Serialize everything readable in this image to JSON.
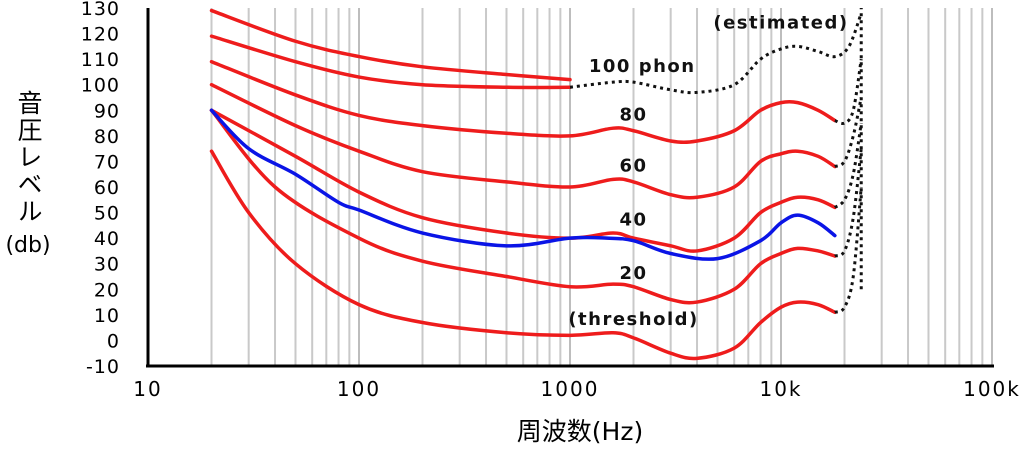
{
  "chart_data": {
    "type": "line",
    "title": "",
    "xlabel": "周波数(Hz)",
    "ylabel": "音圧レベル",
    "ylabel_unit": "(db)",
    "x_scale": "log",
    "xlim": [
      10,
      100000
    ],
    "ylim": [
      -10,
      130
    ],
    "x_ticks": [
      10,
      100,
      1000,
      10000,
      100000
    ],
    "x_tick_labels": [
      "10",
      "100",
      "1000",
      "10k",
      "100k"
    ],
    "y_ticks": [
      -10,
      0,
      10,
      20,
      30,
      40,
      50,
      60,
      70,
      80,
      90,
      100,
      110,
      120,
      130
    ],
    "y_tick_labels": [
      "-10",
      "0",
      "10",
      "20",
      "30",
      "40",
      "50",
      "60",
      "70",
      "80",
      "90",
      "100",
      "110",
      "120",
      "130"
    ],
    "grid": "vertical log minor lines",
    "series": [
      {
        "name": "(threshold)",
        "color": "#ee1c1c",
        "style": "solid",
        "points": [
          [
            20,
            74
          ],
          [
            30,
            50
          ],
          [
            50,
            30
          ],
          [
            100,
            14
          ],
          [
            200,
            7
          ],
          [
            500,
            3
          ],
          [
            1000,
            2
          ],
          [
            1600,
            3
          ],
          [
            2000,
            1
          ],
          [
            3000,
            -5
          ],
          [
            4000,
            -7
          ],
          [
            6000,
            -3
          ],
          [
            8000,
            7
          ],
          [
            10000,
            13
          ],
          [
            12000,
            15
          ],
          [
            15000,
            14
          ],
          [
            18000,
            11
          ]
        ]
      },
      {
        "name": "20",
        "color": "#ee1c1c",
        "style": "solid",
        "points": [
          [
            20,
            90
          ],
          [
            40,
            60
          ],
          [
            100,
            40
          ],
          [
            200,
            31
          ],
          [
            500,
            25
          ],
          [
            1000,
            21
          ],
          [
            1600,
            22
          ],
          [
            2000,
            21
          ],
          [
            3000,
            16
          ],
          [
            4000,
            15
          ],
          [
            6000,
            20
          ],
          [
            8000,
            30
          ],
          [
            10000,
            34
          ],
          [
            12000,
            36
          ],
          [
            15000,
            35
          ],
          [
            18000,
            33
          ]
        ]
      },
      {
        "name": "40",
        "color": "#ee1c1c",
        "style": "solid",
        "points": [
          [
            20,
            90
          ],
          [
            50,
            72
          ],
          [
            100,
            58
          ],
          [
            200,
            48
          ],
          [
            500,
            42
          ],
          [
            1000,
            40
          ],
          [
            1600,
            42
          ],
          [
            2000,
            40
          ],
          [
            3000,
            37
          ],
          [
            4000,
            35
          ],
          [
            6000,
            40
          ],
          [
            8000,
            50
          ],
          [
            10000,
            54
          ],
          [
            12000,
            56
          ],
          [
            15000,
            55
          ],
          [
            18000,
            52
          ]
        ]
      },
      {
        "name": "60",
        "color": "#ee1c1c",
        "style": "solid",
        "points": [
          [
            20,
            100
          ],
          [
            50,
            84
          ],
          [
            100,
            74
          ],
          [
            200,
            66
          ],
          [
            500,
            62
          ],
          [
            1000,
            60
          ],
          [
            1600,
            63
          ],
          [
            2000,
            62
          ],
          [
            3000,
            57
          ],
          [
            4000,
            56
          ],
          [
            6000,
            60
          ],
          [
            8000,
            70
          ],
          [
            10000,
            73
          ],
          [
            12000,
            74
          ],
          [
            15000,
            72
          ],
          [
            18000,
            68
          ]
        ]
      },
      {
        "name": "80",
        "color": "#ee1c1c",
        "style": "solid",
        "points": [
          [
            20,
            109
          ],
          [
            50,
            96
          ],
          [
            100,
            88
          ],
          [
            200,
            84
          ],
          [
            500,
            81
          ],
          [
            1000,
            80
          ],
          [
            1600,
            83
          ],
          [
            2000,
            82
          ],
          [
            3000,
            78
          ],
          [
            4000,
            78
          ],
          [
            6000,
            82
          ],
          [
            8000,
            90
          ],
          [
            10000,
            93
          ],
          [
            12000,
            93
          ],
          [
            15000,
            90
          ],
          [
            18000,
            86
          ]
        ]
      },
      {
        "name": "100 phon",
        "color": "#ee1c1c",
        "style": "solid",
        "points": [
          [
            20,
            119
          ],
          [
            50,
            109
          ],
          [
            100,
            103
          ],
          [
            200,
            100
          ],
          [
            500,
            99
          ],
          [
            1000,
            99
          ]
        ]
      },
      {
        "name": "100 phon (estimated)",
        "color": "#111111",
        "style": "dotted",
        "points": [
          [
            1000,
            99
          ],
          [
            1600,
            101
          ],
          [
            2000,
            101
          ],
          [
            3000,
            98
          ],
          [
            4000,
            97
          ],
          [
            6000,
            100
          ],
          [
            8000,
            110
          ],
          [
            10000,
            114
          ],
          [
            12000,
            115
          ],
          [
            15000,
            113
          ],
          [
            18000,
            111
          ],
          [
            21000,
            115
          ],
          [
            24000,
            128
          ]
        ]
      },
      {
        "name": "",
        "color": "#ee1c1c",
        "style": "solid",
        "points": [
          [
            20,
            129
          ],
          [
            50,
            117
          ],
          [
            100,
            111
          ],
          [
            200,
            107
          ],
          [
            500,
            104
          ],
          [
            1000,
            102
          ]
        ]
      },
      {
        "name": "",
        "color": "#111111",
        "style": "dotted",
        "points": [
          [
            18000,
            86
          ],
          [
            20000,
            85
          ],
          [
            22000,
            90
          ],
          [
            24000,
            110
          ]
        ]
      },
      {
        "name": "",
        "color": "#111111",
        "style": "dotted",
        "points": [
          [
            18000,
            68
          ],
          [
            20000,
            70
          ],
          [
            22000,
            80
          ],
          [
            24000,
            95
          ]
        ]
      },
      {
        "name": "",
        "color": "#111111",
        "style": "dotted",
        "points": [
          [
            18000,
            52
          ],
          [
            20000,
            55
          ],
          [
            22000,
            65
          ],
          [
            24000,
            85
          ]
        ]
      },
      {
        "name": "",
        "color": "#111111",
        "style": "dotted",
        "points": [
          [
            18000,
            33
          ],
          [
            20000,
            35
          ],
          [
            22000,
            48
          ],
          [
            24000,
            75
          ]
        ]
      },
      {
        "name": "",
        "color": "#111111",
        "style": "dotted",
        "points": [
          [
            18000,
            11
          ],
          [
            20000,
            13
          ],
          [
            22000,
            25
          ],
          [
            24000,
            60
          ]
        ]
      },
      {
        "name": "",
        "color": "#111111",
        "style": "dotted",
        "points": [
          [
            24000,
            20
          ],
          [
            24000,
            130
          ]
        ]
      },
      {
        "name": "",
        "color": "#0a14e6",
        "style": "solid",
        "points": [
          [
            20,
            90
          ],
          [
            30,
            75
          ],
          [
            50,
            65
          ],
          [
            80,
            54
          ],
          [
            100,
            51
          ],
          [
            200,
            42
          ],
          [
            500,
            37
          ],
          [
            1000,
            40
          ],
          [
            1500,
            40
          ],
          [
            2000,
            39
          ],
          [
            3000,
            34
          ],
          [
            5000,
            32
          ],
          [
            8000,
            39
          ],
          [
            10000,
            46
          ],
          [
            12000,
            49
          ],
          [
            15000,
            46
          ],
          [
            18000,
            41
          ]
        ]
      }
    ],
    "annotations": [
      {
        "text": "(estimated)",
        "x": 10000,
        "y": 122
      },
      {
        "text": "100 phon",
        "x": 2200,
        "y": 105
      },
      {
        "text": "80",
        "x": 2000,
        "y": 86
      },
      {
        "text": "60",
        "x": 2000,
        "y": 66
      },
      {
        "text": "40",
        "x": 2000,
        "y": 45
      },
      {
        "text": "20",
        "x": 2000,
        "y": 24
      },
      {
        "text": "(threshold)",
        "x": 2000,
        "y": 6
      }
    ]
  }
}
